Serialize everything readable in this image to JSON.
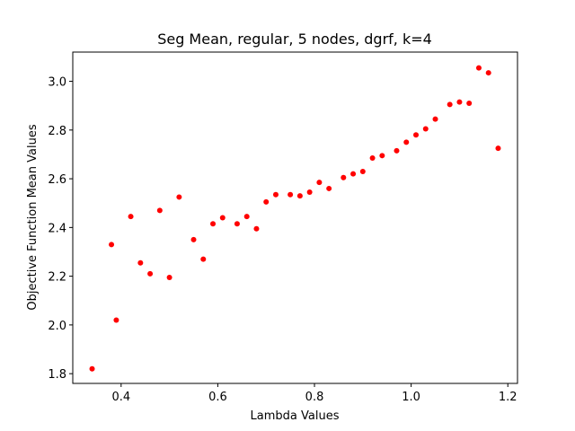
{
  "chart_data": {
    "type": "scatter",
    "title": "Seg Mean, regular, 5 nodes, dgrf, k=4",
    "xlabel": "Lambda Values",
    "ylabel": "Objective Function Mean Values",
    "xlim": [
      0.3,
      1.22
    ],
    "ylim": [
      1.76,
      3.12
    ],
    "xticks": [
      0.4,
      0.6,
      0.8,
      1.0,
      1.2
    ],
    "xtick_labels": [
      "0.4",
      "0.6",
      "0.8",
      "1.0",
      "1.2"
    ],
    "yticks": [
      1.8,
      2.0,
      2.2,
      2.4,
      2.6,
      2.8,
      3.0
    ],
    "ytick_labels": [
      "1.8",
      "2.0",
      "2.2",
      "2.4",
      "2.6",
      "2.8",
      "3.0"
    ],
    "grid": false,
    "marker_color": "#ff0000",
    "x": [
      0.34,
      0.38,
      0.39,
      0.42,
      0.44,
      0.46,
      0.48,
      0.5,
      0.52,
      0.55,
      0.57,
      0.59,
      0.61,
      0.64,
      0.66,
      0.68,
      0.7,
      0.72,
      0.75,
      0.77,
      0.79,
      0.81,
      0.83,
      0.86,
      0.88,
      0.9,
      0.92,
      0.94,
      0.97,
      0.99,
      1.01,
      1.03,
      1.05,
      1.08,
      1.1,
      1.12,
      1.14,
      1.16,
      1.18
    ],
    "y": [
      1.82,
      2.33,
      2.02,
      2.445,
      2.255,
      2.21,
      2.47,
      2.195,
      2.525,
      2.35,
      2.27,
      2.415,
      2.44,
      2.415,
      2.445,
      2.395,
      2.505,
      2.535,
      2.535,
      2.53,
      2.545,
      2.585,
      2.56,
      2.605,
      2.62,
      2.63,
      2.685,
      2.695,
      2.715,
      2.75,
      2.78,
      2.805,
      2.845,
      2.905,
      2.915,
      2.91,
      3.055,
      3.035,
      2.725
    ]
  }
}
